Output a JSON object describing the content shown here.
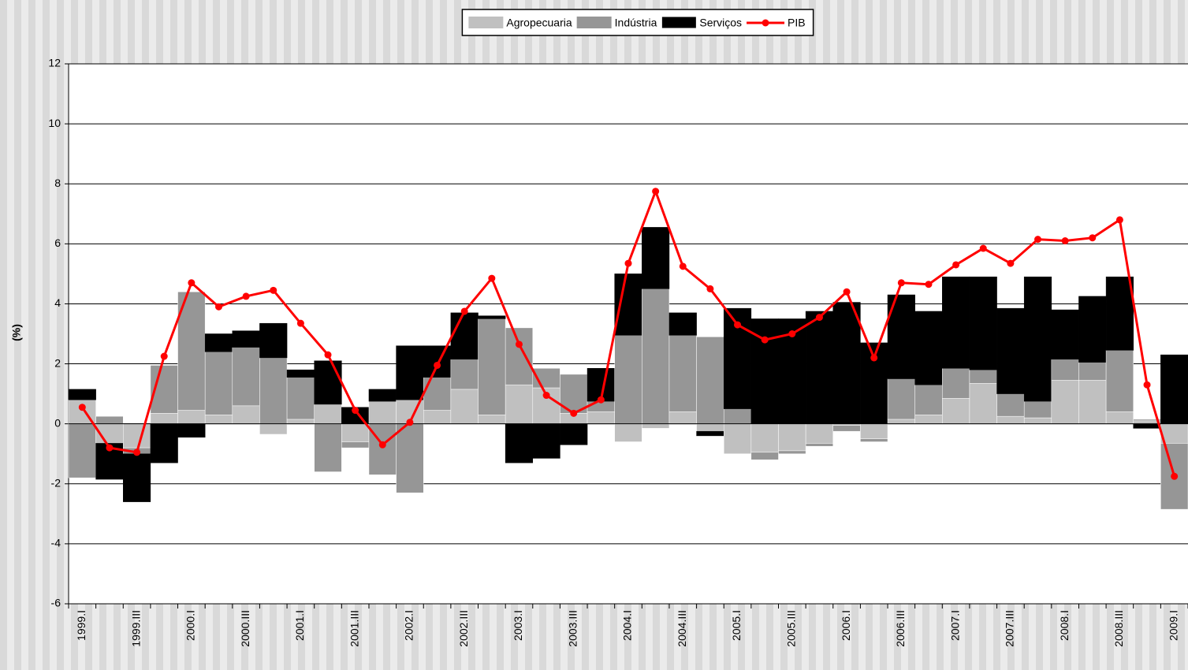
{
  "chart_data": {
    "type": "bar",
    "y_label": "(%)",
    "categories": [
      "1999.I",
      null,
      "1999.III",
      null,
      "2000.I",
      null,
      "2000.III",
      null,
      "2001.I",
      null,
      "2001.III",
      null,
      "2002.I",
      null,
      "2002.III",
      null,
      "2003.I",
      null,
      "2003.III",
      null,
      "2004.I",
      null,
      "2004.III",
      null,
      "2005.I",
      null,
      "2005.III",
      null,
      "2006.I",
      null,
      "2006.III",
      null,
      "2007.I",
      null,
      "2007.III",
      null,
      "2008.I",
      null,
      "2008.III",
      null,
      "2009.I"
    ],
    "series": [
      {
        "name": "Agropecuaria",
        "type": "bar",
        "color": "#c0c0c0",
        "values": [
          0.8,
          -0.65,
          -0.8,
          0.35,
          0.45,
          0.3,
          0.6,
          -0.35,
          0.15,
          0.65,
          -0.6,
          0.75,
          0.8,
          0.45,
          1.15,
          0.3,
          1.3,
          1.2,
          0.35,
          0.4,
          -0.6,
          -0.15,
          0.4,
          -0.25,
          -1.0,
          -0.95,
          -0.9,
          -0.65,
          -0.05,
          -0.5,
          0.15,
          0.3,
          0.85,
          1.35,
          0.25,
          0.2,
          1.45,
          1.45,
          0.4,
          0.1,
          -0.65
        ]
      },
      {
        "name": "Indústria",
        "type": "bar",
        "color": "#969696",
        "values": [
          -1.8,
          0.25,
          -0.2,
          1.6,
          3.95,
          2.1,
          1.95,
          2.2,
          1.4,
          -1.6,
          -0.2,
          -1.7,
          -2.3,
          1.1,
          1.0,
          3.2,
          1.9,
          0.65,
          1.3,
          0.35,
          2.95,
          4.5,
          2.55,
          2.9,
          0.5,
          -0.25,
          -0.1,
          -0.1,
          -0.2,
          -0.1,
          1.35,
          1.0,
          1.0,
          0.45,
          0.75,
          0.55,
          0.7,
          0.6,
          2.05,
          0.05,
          -2.2
        ]
      },
      {
        "name": "Serviços",
        "type": "bar",
        "color": "#000000",
        "values": [
          0.35,
          -1.2,
          -1.6,
          -1.3,
          -0.45,
          0.6,
          0.55,
          1.15,
          0.25,
          1.45,
          0.55,
          0.4,
          1.8,
          1.05,
          1.55,
          0.1,
          -1.3,
          -1.15,
          -0.7,
          1.1,
          2.05,
          2.05,
          0.75,
          -0.15,
          3.35,
          3.5,
          3.5,
          3.75,
          4.05,
          2.7,
          2.8,
          2.45,
          3.05,
          3.1,
          2.85,
          4.15,
          1.65,
          2.2,
          2.45,
          -0.15,
          2.3
        ]
      },
      {
        "name": "PIB",
        "type": "line",
        "color": "#ff0000",
        "values": [
          0.55,
          -0.8,
          -0.95,
          2.25,
          4.7,
          3.9,
          4.25,
          4.45,
          3.35,
          2.3,
          0.45,
          -0.7,
          0.05,
          1.95,
          3.75,
          4.85,
          2.65,
          0.95,
          0.35,
          0.8,
          5.35,
          7.75,
          5.25,
          4.5,
          3.3,
          2.8,
          3.0,
          3.55,
          4.4,
          2.2,
          4.7,
          4.65,
          5.3,
          5.85,
          5.35,
          6.15,
          6.1,
          6.2,
          6.8,
          1.3,
          -1.75
        ]
      }
    ],
    "ylim": [
      -6,
      12
    ],
    "yticks": [
      -6,
      -4,
      -2,
      0,
      2,
      4,
      6,
      8,
      10,
      12
    ],
    "grid": true,
    "legend": "top"
  }
}
